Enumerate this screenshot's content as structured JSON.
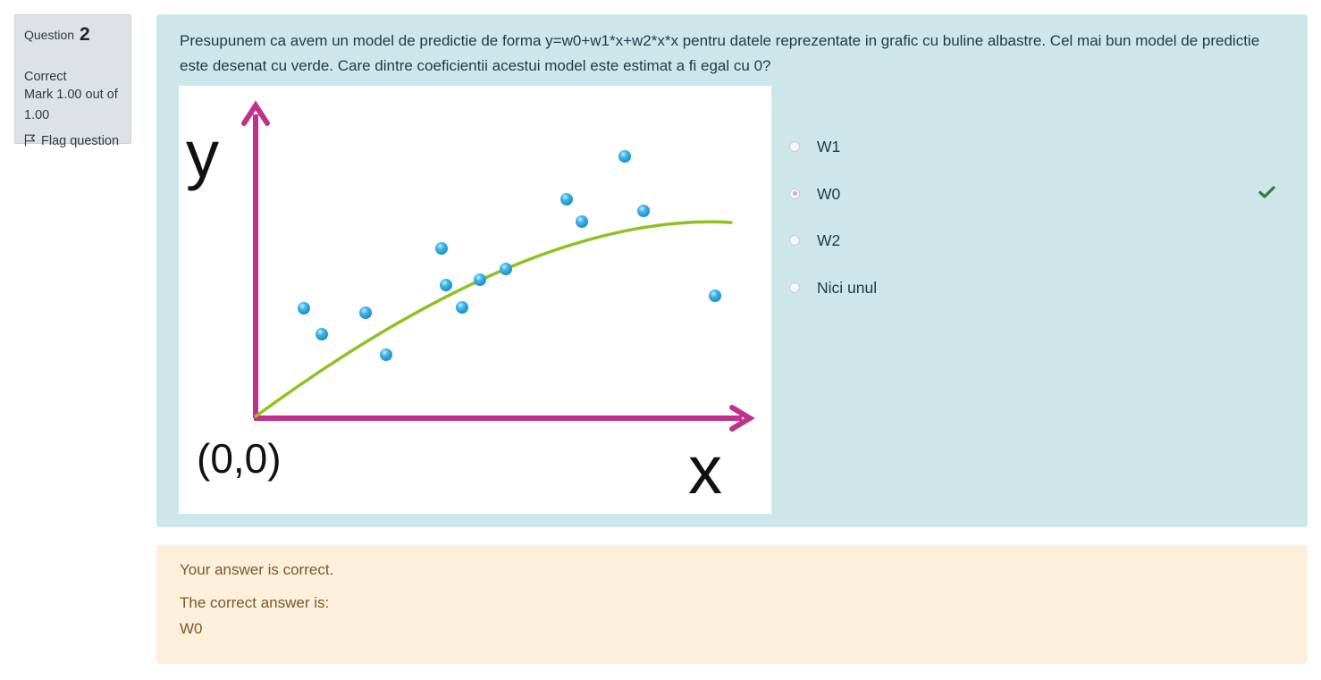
{
  "info": {
    "question_label": "Question",
    "question_number": "2",
    "state": "Correct",
    "grade": "Mark 1.00 out of 1.00",
    "flag_label": "Flag question"
  },
  "question": {
    "text": "Presupunem ca avem un model de predictie de forma y=w0+w1*x+w2*x*x pentru datele reprezentate in grafic cu buline albastre. Cel mai bun model de predictie este desenat cu verde. Care dintre coeficientii acestui model este estimat a fi egal cu 0?",
    "image": {
      "y_label": "y",
      "x_label": "x",
      "origin_label": "(0,0)",
      "colors": {
        "axes": "#c0308c",
        "curve": "#8dc21f",
        "points": "#29a9e0"
      }
    },
    "options": [
      {
        "label": "W1",
        "selected": false,
        "correct": false
      },
      {
        "label": "W0",
        "selected": true,
        "correct": true
      },
      {
        "label": "W2",
        "selected": false,
        "correct": false
      },
      {
        "label": "Nici unul",
        "selected": false,
        "correct": false
      }
    ]
  },
  "outcome": {
    "feedback": "Your answer is correct.",
    "right_answer_label": "The correct answer is:",
    "right_answer_value": "W0"
  },
  "colors": {
    "formulation_bg": "#cde6ea",
    "outcome_bg": "#fcefdc",
    "info_bg": "#dee2e6",
    "check": "#3c763d"
  },
  "icons": {
    "flag": "flag-icon",
    "check": "check-icon"
  }
}
